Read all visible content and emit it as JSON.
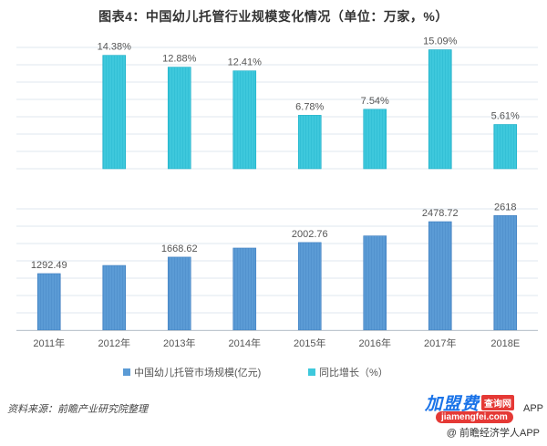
{
  "title": "图表4：中国幼儿托管行业规模变化情况（单位：万家，%）",
  "colors": {
    "growth_bar": "#3ec8dc",
    "growth_bar_stroke": "#1aaec6",
    "market_bar": "#5b9bd5",
    "market_bar_stroke": "#3f7fc0",
    "grid": "#dfe7ef"
  },
  "chart_data": [
    {
      "type": "bar",
      "categories": [
        "2011年",
        "2012年",
        "2013年",
        "2014年",
        "2015年",
        "2016年",
        "2017年",
        "2018E"
      ],
      "series": [
        {
          "name": "同比增长（%）",
          "values": [
            null,
            14.38,
            12.88,
            12.41,
            6.78,
            7.54,
            15.09,
            5.61
          ],
          "labels": [
            "",
            "14.38%",
            "12.88%",
            "12.41%",
            "6.78%",
            "7.54%",
            "15.09%",
            "5.61%"
          ]
        }
      ],
      "ylim": [
        0,
        17
      ],
      "grid": true
    },
    {
      "type": "bar",
      "categories": [
        "2011年",
        "2012年",
        "2013年",
        "2014年",
        "2015年",
        "2016年",
        "2017年",
        "2018E"
      ],
      "series": [
        {
          "name": "中国幼儿托管市场规模(亿元)",
          "values": [
            1292.49,
            1478.35,
            1668.62,
            1875.69,
            2002.76,
            2153.76,
            2478.72,
            2618
          ],
          "labels": [
            "1292.49",
            "",
            "1668.62",
            "",
            "2002.76",
            "",
            "2478.72",
            "2618"
          ]
        }
      ],
      "ylim": [
        0,
        3000
      ],
      "grid": true
    }
  ],
  "legend": {
    "market": "中国幼儿托管市场规模(亿元)",
    "growth": "同比增长（%）"
  },
  "source": "资料来源：前瞻产业研究院整理",
  "footer": {
    "logo_main": "加盟费",
    "logo_tag": "查询网",
    "logo_url": "jiamengfei.com",
    "app_suffix": "APP",
    "app_name": "@ 前瞻经济学人APP"
  }
}
